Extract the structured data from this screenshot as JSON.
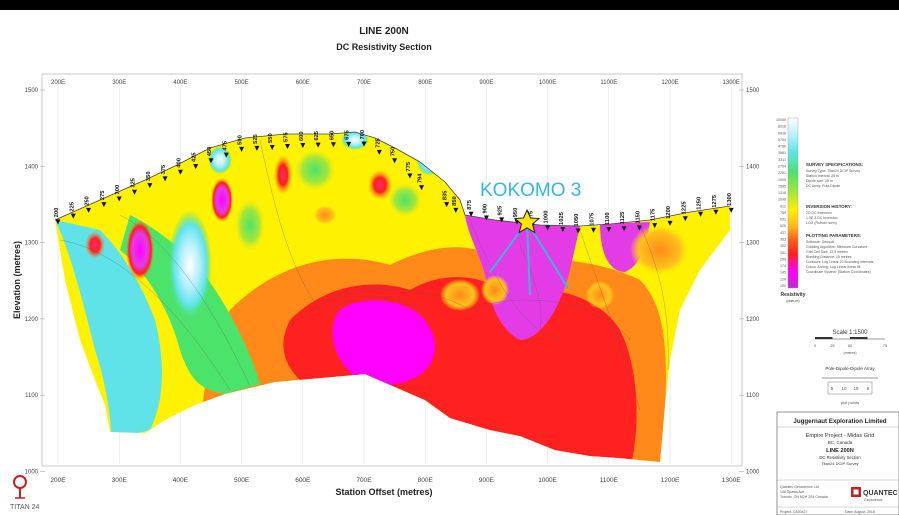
{
  "title": {
    "line": "LINE 200N",
    "subtitle": "DC Resistivity Section"
  },
  "axes": {
    "x_label": "Station Offset (metres)",
    "y_label": "Elevation (metres)",
    "x_ticks": [
      "200E",
      "300E",
      "400E",
      "500E",
      "600E",
      "700E",
      "800E",
      "900E",
      "1000E",
      "1100E",
      "1200E",
      "1300E"
    ],
    "y_ticks_left": [
      "1500",
      "1400",
      "1300",
      "1200",
      "1100",
      "1000"
    ],
    "y_ticks_right": [
      "1500",
      "1400",
      "1300",
      "1200",
      "1100",
      "1000"
    ]
  },
  "stations": [
    "200",
    "225",
    "250",
    "275",
    "300",
    "325",
    "350",
    "375",
    "400",
    "425",
    "450",
    "475",
    "500",
    "525",
    "550",
    "575",
    "600",
    "625",
    "650",
    "675",
    "700",
    "725",
    "750",
    "775",
    "794",
    "835",
    "850",
    "875",
    "900",
    "925",
    "950",
    "975",
    "1000",
    "1025",
    "1050",
    "1075",
    "1100",
    "1125",
    "1150",
    "1175",
    "1200",
    "1225",
    "1250",
    "1275",
    "1300"
  ],
  "annotation": {
    "target": "KOKOMO 3"
  },
  "colorbar": {
    "values": [
      "10000",
      "8318",
      "6918",
      "5754",
      "4786",
      "3981",
      "3311",
      "2754",
      "2291",
      "1905",
      "1585",
      "1318",
      "1096",
      "912",
      "759",
      "631",
      "525",
      "437",
      "363",
      "302",
      "251",
      "209",
      "174",
      "145",
      "120",
      "100"
    ],
    "label": "Resistivity",
    "unit": "(ohm-m)"
  },
  "specs": {
    "survey_heading": "SURVEY SPECIFICATIONS:",
    "survey_lines": [
      "Survey Type: Titan24 DCIP Survey",
      "Station Interval: 25 m",
      "Dipole size: 25 m",
      "DC Array: Pole-Dipole"
    ],
    "inversion_heading": "INVERSION HISTORY:",
    "inversion_lines": [
      "2D DC Inversion",
      "1.0E-3 DC Inversion",
      "LOG (Robust norm)"
    ],
    "plotting_heading": "PLOTTING PARAMETERS:",
    "plotting_lines": [
      "Software: Geosoft",
      "Gridding Algorithm: Minimum Curvature",
      "Grid Cell Size: 12.5 metres",
      "Blanking Distance: 15 metres",
      "Contours: Log Linear 20 Bounding intervals",
      "Colour Zoning: Log Linear linear fill",
      "Coordinate System: (Station Coordinates)"
    ]
  },
  "scale": {
    "label": "Scale 1:1500",
    "ticks": [
      "0",
      "25",
      "50",
      "75"
    ],
    "unit": "(metres)"
  },
  "array_diagram": {
    "label": "Pole-Dipole-Dipole Array",
    "values": [
      "5",
      "10",
      "15",
      "6"
    ],
    "footer": "plot points"
  },
  "title_block": {
    "company": "Juggernaut Exploration Limited",
    "project": "Empire Project - Midas Grid",
    "location": "BC, Canada",
    "line": "LINE 200N",
    "section": "DC Resistivity Section",
    "survey": "Titan24 DCIP Survey",
    "contractor_lines": [
      "Quantec Geoscience Ltd.",
      "146 Sparks Ave",
      "Toronto, ON M2H 2S4 Canada"
    ],
    "contractor_logo": "QUANTEC",
    "contractor_sub": "Geoscience",
    "footer_left": "Project: CA00427",
    "footer_right": "Date: August, 2018"
  },
  "logo": {
    "text": "TITAN 24"
  },
  "colors": {
    "purple": "#e33ce6",
    "magenta": "#ff00ff",
    "red": "#ff2020",
    "orange": "#ff8a1a",
    "yellow": "#fff200",
    "lime": "#a8e63a",
    "green": "#4ce36b",
    "cyan": "#5fe3e8",
    "lightblue": "#b8f0ff",
    "kokomo": "#35b7e0"
  }
}
